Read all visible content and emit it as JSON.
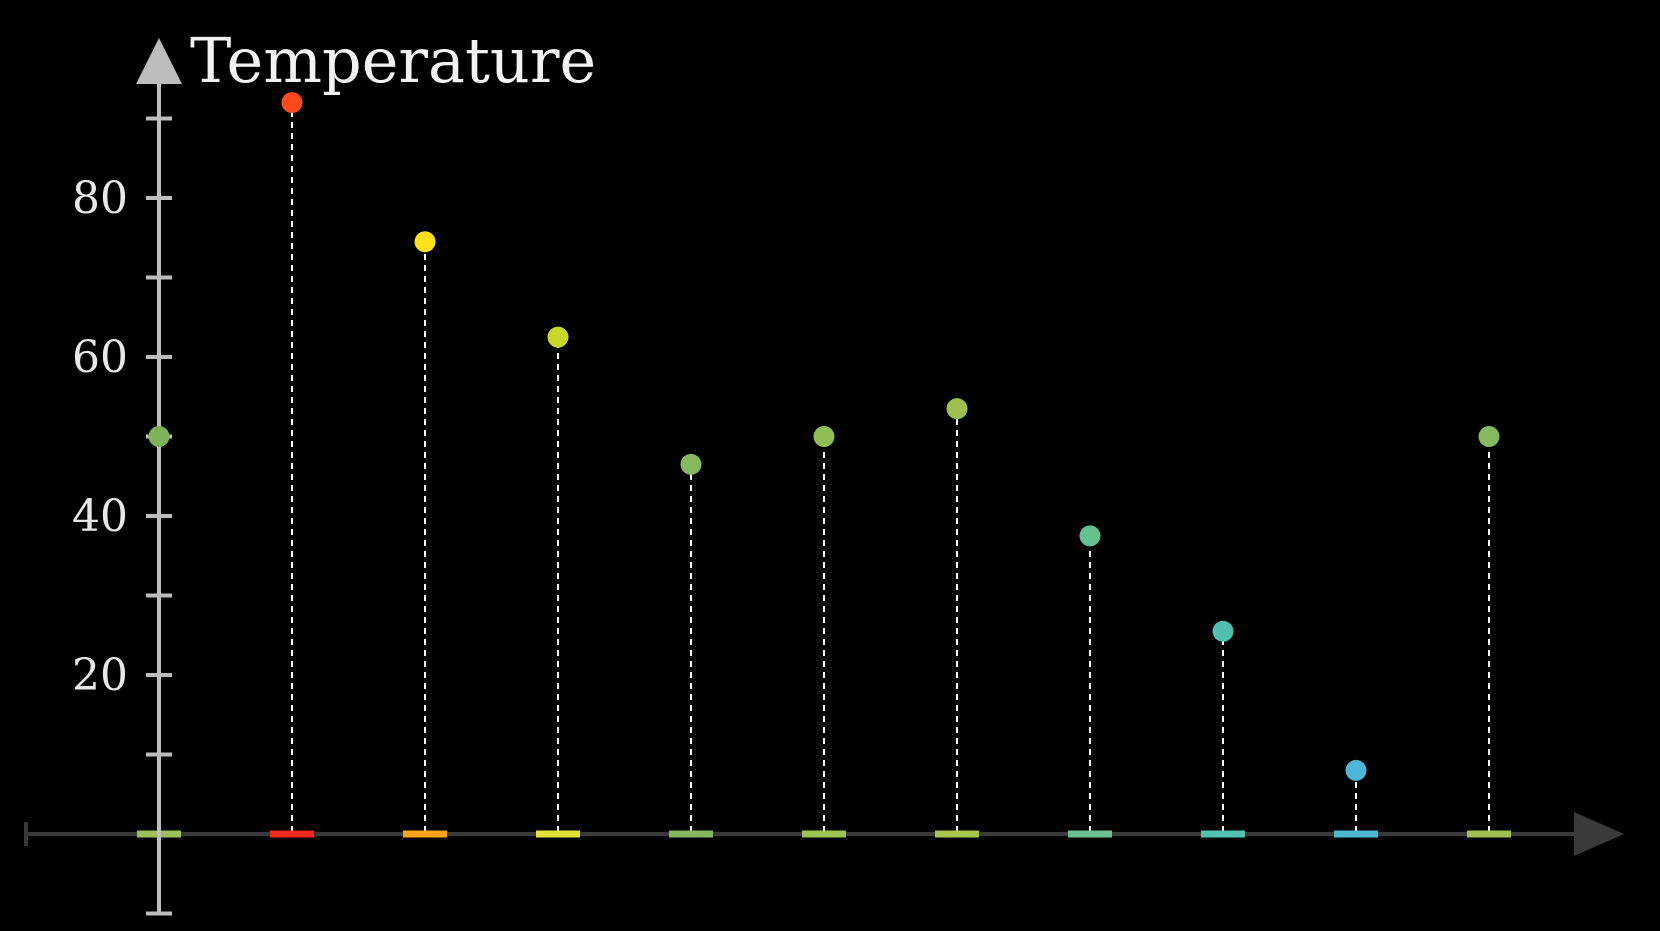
{
  "chart_data": {
    "type": "scatter",
    "style": "stem",
    "ylabel": "Temperature",
    "xlabel": "",
    "x": [
      0,
      1,
      2,
      3,
      4,
      5,
      6,
      7,
      8,
      9,
      10
    ],
    "values": [
      50,
      92,
      74.5,
      62.5,
      46.5,
      50,
      53.5,
      37.5,
      25.5,
      8,
      50
    ],
    "point_colors": [
      "#7fb35a",
      "#ff4a1c",
      "#ffe01a",
      "#c9d62a",
      "#86b85e",
      "#8fbf55",
      "#9cc04f",
      "#63c08f",
      "#4fc0ad",
      "#4db6d6",
      "#86b85e"
    ],
    "marker_colors": [
      "#9bbf5a",
      "#ee2a1f",
      "#ffa21c",
      "#e3e23a",
      "#86b85e",
      "#9cc452",
      "#a8c74a",
      "#6cc08f",
      "#54c2b3",
      "#4bb8d2",
      "#a2bf55"
    ],
    "ylim": [
      -10,
      100
    ],
    "yticks": [
      20,
      40,
      60,
      80
    ],
    "ytick_labels": [
      "20",
      "40",
      "60",
      "80"
    ],
    "minor_yticks": [
      -10,
      10,
      30,
      50,
      70,
      90
    ],
    "grid": false,
    "legend": "none",
    "colors": {
      "background": "#000000",
      "y_axis": "#bdbdbd",
      "x_axis": "#3a3a3a",
      "stem": "#ffffff",
      "text": "#eeeeee"
    }
  }
}
